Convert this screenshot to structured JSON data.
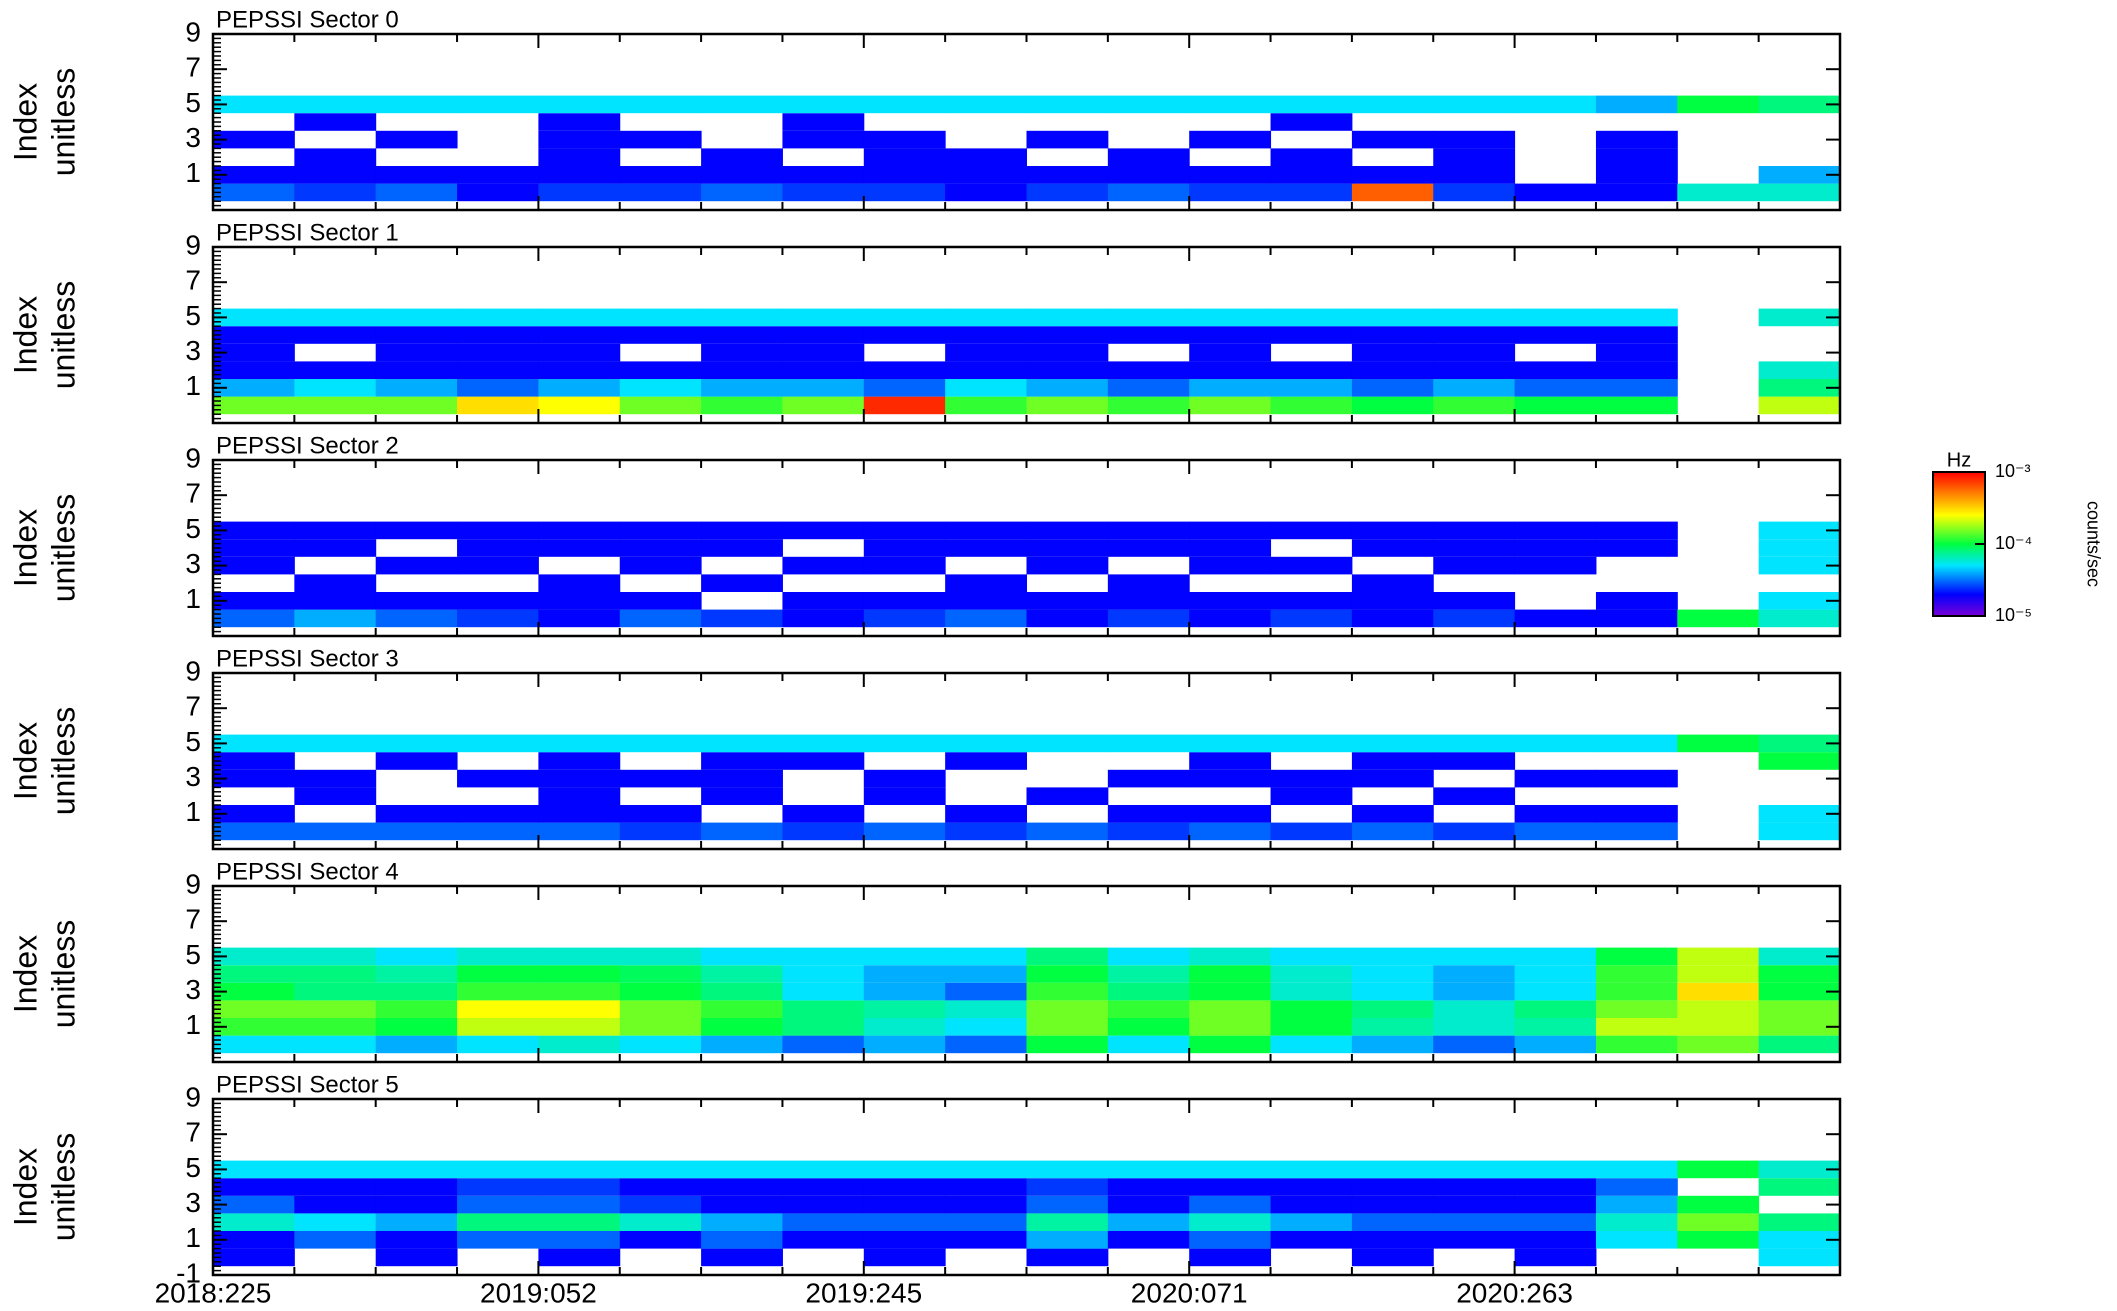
{
  "chart_data": {
    "type": "heatmap",
    "ylabel": "Index",
    "yunit": "unitless",
    "x": [
      "2018:225",
      null,
      null,
      null,
      "2019:052",
      null,
      null,
      null,
      "2019:245",
      null,
      null,
      null,
      "2020:071",
      null,
      null,
      null,
      "2020:263",
      null,
      null,
      null
    ],
    "ylim": [
      -1,
      9
    ],
    "yticks": [
      -1,
      1,
      3,
      5,
      7,
      9
    ],
    "rows": [
      0,
      1,
      2,
      3,
      4,
      5
    ],
    "colormap": "rainbow",
    "log_color": true,
    "colorbar": {
      "title": "Hz",
      "label": "counts/sec",
      "lim": [
        1e-05,
        0.001
      ],
      "ticks": [
        {
          "value": 1e-05,
          "label": "10⁻⁵"
        },
        {
          "value": 0.0001,
          "label": "10⁻⁴"
        },
        {
          "value": 0.001,
          "label": "10⁻³"
        }
      ]
    },
    "panels": [
      {
        "title": "PEPSSI Sector 0",
        "values": [
          [
            3e-05,
            2.5e-05,
            3e-05,
            2e-05,
            2.5e-05,
            2.5e-05,
            3e-05,
            2.5e-05,
            2.5e-05,
            2e-05,
            2.5e-05,
            3e-05,
            2.5e-05,
            2.5e-05,
            0.0006,
            2.5e-05,
            2e-05,
            2e-05,
            6e-05,
            6e-05
          ],
          [
            2e-05,
            2e-05,
            2e-05,
            2e-05,
            2e-05,
            2e-05,
            2e-05,
            2e-05,
            2e-05,
            2e-05,
            2e-05,
            2e-05,
            2e-05,
            2e-05,
            2e-05,
            2e-05,
            null,
            2e-05,
            null,
            4e-05
          ],
          [
            null,
            2e-05,
            null,
            null,
            2e-05,
            null,
            2e-05,
            null,
            2e-05,
            2e-05,
            null,
            2e-05,
            null,
            2e-05,
            null,
            2e-05,
            null,
            2e-05,
            null,
            null
          ],
          [
            2e-05,
            null,
            2e-05,
            null,
            2e-05,
            2e-05,
            null,
            2e-05,
            2e-05,
            null,
            2e-05,
            null,
            2e-05,
            null,
            2e-05,
            2e-05,
            null,
            2e-05,
            null,
            null
          ],
          [
            null,
            2e-05,
            null,
            null,
            2e-05,
            null,
            null,
            2e-05,
            null,
            null,
            null,
            null,
            null,
            2e-05,
            null,
            null,
            null,
            null,
            null,
            null
          ],
          [
            5e-05,
            5e-05,
            5e-05,
            5e-05,
            5e-05,
            5e-05,
            5e-05,
            5e-05,
            5e-05,
            5e-05,
            5e-05,
            5e-05,
            5e-05,
            5e-05,
            5e-05,
            5e-05,
            5e-05,
            4e-05,
            0.0001,
            8e-05
          ]
        ]
      },
      {
        "title": "PEPSSI Sector 1",
        "values": [
          [
            0.00015,
            0.00015,
            0.00015,
            0.0003,
            0.00025,
            0.00015,
            0.00012,
            0.00015,
            0.0008,
            0.00012,
            0.00015,
            0.00012,
            0.00015,
            0.00012,
            0.0001,
            0.00012,
            0.0001,
            0.0001,
            null,
            0.0002
          ],
          [
            4e-05,
            5e-05,
            4e-05,
            3e-05,
            4e-05,
            5e-05,
            4e-05,
            4e-05,
            3e-05,
            5e-05,
            4e-05,
            3e-05,
            4e-05,
            4e-05,
            3e-05,
            4e-05,
            3e-05,
            3e-05,
            null,
            8e-05
          ],
          [
            2e-05,
            2e-05,
            2e-05,
            2e-05,
            2e-05,
            2e-05,
            2e-05,
            2e-05,
            2e-05,
            2e-05,
            2e-05,
            2e-05,
            2e-05,
            2e-05,
            2e-05,
            2e-05,
            2e-05,
            2e-05,
            null,
            6e-05
          ],
          [
            2e-05,
            null,
            2e-05,
            2e-05,
            2e-05,
            null,
            2e-05,
            2e-05,
            null,
            2e-05,
            2e-05,
            null,
            2e-05,
            null,
            2e-05,
            2e-05,
            null,
            2e-05,
            null,
            null
          ],
          [
            2e-05,
            2e-05,
            2e-05,
            2e-05,
            2e-05,
            2e-05,
            2e-05,
            2e-05,
            2e-05,
            2e-05,
            2e-05,
            2e-05,
            2e-05,
            2e-05,
            2e-05,
            2e-05,
            2e-05,
            2e-05,
            null,
            null
          ],
          [
            5e-05,
            5e-05,
            5e-05,
            5e-05,
            5e-05,
            5e-05,
            5e-05,
            5e-05,
            5e-05,
            5e-05,
            5e-05,
            5e-05,
            5e-05,
            5e-05,
            5e-05,
            5e-05,
            5e-05,
            5e-05,
            null,
            6e-05
          ]
        ]
      },
      {
        "title": "PEPSSI Sector 2",
        "values": [
          [
            3e-05,
            4e-05,
            3e-05,
            2.5e-05,
            2e-05,
            3e-05,
            2.5e-05,
            2e-05,
            2.5e-05,
            3e-05,
            2e-05,
            2.5e-05,
            2e-05,
            2.5e-05,
            2e-05,
            2.5e-05,
            2e-05,
            2e-05,
            0.0001,
            6e-05
          ],
          [
            2e-05,
            2e-05,
            2e-05,
            2e-05,
            2e-05,
            2e-05,
            null,
            2e-05,
            2e-05,
            2e-05,
            2e-05,
            2e-05,
            2e-05,
            2e-05,
            2e-05,
            2e-05,
            null,
            2e-05,
            null,
            5e-05
          ],
          [
            null,
            2e-05,
            null,
            null,
            2e-05,
            null,
            2e-05,
            null,
            null,
            2e-05,
            null,
            2e-05,
            null,
            null,
            2e-05,
            null,
            null,
            null,
            null,
            null
          ],
          [
            2e-05,
            null,
            2e-05,
            2e-05,
            null,
            2e-05,
            null,
            2e-05,
            2e-05,
            null,
            2e-05,
            null,
            2e-05,
            2e-05,
            null,
            2e-05,
            2e-05,
            null,
            null,
            5e-05
          ],
          [
            2e-05,
            2e-05,
            null,
            2e-05,
            2e-05,
            2e-05,
            2e-05,
            null,
            2e-05,
            2e-05,
            2e-05,
            2e-05,
            2e-05,
            null,
            2e-05,
            2e-05,
            2e-05,
            2e-05,
            null,
            5e-05
          ],
          [
            2e-05,
            2e-05,
            2e-05,
            2e-05,
            2e-05,
            2e-05,
            2e-05,
            2e-05,
            2e-05,
            2e-05,
            2e-05,
            2e-05,
            2e-05,
            2e-05,
            2e-05,
            2e-05,
            2e-05,
            2e-05,
            null,
            5e-05
          ]
        ]
      },
      {
        "title": "PEPSSI Sector 3",
        "values": [
          [
            3e-05,
            3e-05,
            3e-05,
            3e-05,
            3e-05,
            2.5e-05,
            3e-05,
            2.5e-05,
            3e-05,
            2.5e-05,
            3e-05,
            2.5e-05,
            3e-05,
            2.5e-05,
            3e-05,
            2.5e-05,
            3e-05,
            3e-05,
            null,
            5e-05
          ],
          [
            2e-05,
            null,
            2e-05,
            2e-05,
            2e-05,
            2e-05,
            null,
            2e-05,
            null,
            2e-05,
            null,
            2e-05,
            2e-05,
            null,
            2e-05,
            null,
            2e-05,
            2e-05,
            null,
            5e-05
          ],
          [
            null,
            2e-05,
            null,
            null,
            2e-05,
            null,
            2e-05,
            null,
            2e-05,
            null,
            2e-05,
            null,
            null,
            2e-05,
            null,
            2e-05,
            null,
            null,
            null,
            null
          ],
          [
            2e-05,
            2e-05,
            null,
            2e-05,
            2e-05,
            2e-05,
            2e-05,
            null,
            2e-05,
            null,
            null,
            2e-05,
            2e-05,
            2e-05,
            2e-05,
            null,
            2e-05,
            2e-05,
            null,
            null
          ],
          [
            2e-05,
            null,
            2e-05,
            null,
            2e-05,
            null,
            2e-05,
            2e-05,
            null,
            2e-05,
            null,
            null,
            2e-05,
            null,
            2e-05,
            2e-05,
            null,
            null,
            null,
            0.0001
          ],
          [
            5e-05,
            5e-05,
            5e-05,
            5e-05,
            5e-05,
            5e-05,
            5e-05,
            5e-05,
            5e-05,
            5e-05,
            5e-05,
            5e-05,
            5e-05,
            5e-05,
            5e-05,
            5e-05,
            5e-05,
            5e-05,
            0.0001,
            8e-05
          ]
        ]
      },
      {
        "title": "PEPSSI Sector 4",
        "values": [
          [
            5e-05,
            5e-05,
            4e-05,
            5e-05,
            6e-05,
            5e-05,
            4e-05,
            3e-05,
            4e-05,
            3e-05,
            0.0001,
            5e-05,
            0.0001,
            5e-05,
            4e-05,
            3e-05,
            4e-05,
            0.00012,
            0.00015,
            8e-05
          ],
          [
            0.00012,
            0.00012,
            0.0001,
            0.0002,
            0.0002,
            0.00015,
            0.0001,
            8e-05,
            6e-05,
            5e-05,
            0.00015,
            0.0001,
            0.00015,
            0.0001,
            7e-05,
            6e-05,
            7e-05,
            0.0002,
            0.0002,
            0.00015
          ],
          [
            0.00015,
            0.00015,
            0.00012,
            0.00025,
            0.00025,
            0.00015,
            0.00012,
            8e-05,
            7e-05,
            6e-05,
            0.00015,
            0.00012,
            0.00015,
            0.0001,
            8e-05,
            6e-05,
            8e-05,
            0.00015,
            0.0002,
            0.00015
          ],
          [
            0.0001,
            8e-05,
            8e-05,
            0.00012,
            0.00012,
            0.0001,
            8e-05,
            5e-05,
            4e-05,
            3e-05,
            0.00012,
            8e-05,
            0.0001,
            6e-05,
            5e-05,
            4e-05,
            5e-05,
            0.00012,
            0.0003,
            0.0001
          ],
          [
            8e-05,
            8e-05,
            7e-05,
            0.0001,
            0.0001,
            9e-05,
            7e-05,
            5e-05,
            4e-05,
            4e-05,
            0.0001,
            7e-05,
            0.0001,
            6e-05,
            5e-05,
            4e-05,
            5e-05,
            0.00012,
            0.0002,
            0.0001
          ],
          [
            6e-05,
            6e-05,
            5e-05,
            6e-05,
            6e-05,
            6e-05,
            5e-05,
            5e-05,
            5e-05,
            5e-05,
            8e-05,
            5e-05,
            6e-05,
            5e-05,
            5e-05,
            5e-05,
            5e-05,
            0.0001,
            0.0002,
            6e-05
          ]
        ]
      },
      {
        "title": "PEPSSI Sector 5",
        "values": [
          [
            2e-05,
            null,
            2e-05,
            null,
            2e-05,
            null,
            2e-05,
            null,
            2e-05,
            null,
            2e-05,
            null,
            2e-05,
            null,
            2e-05,
            null,
            2e-05,
            null,
            null,
            5e-05
          ],
          [
            2e-05,
            3e-05,
            2e-05,
            3e-05,
            3e-05,
            2e-05,
            3e-05,
            2e-05,
            2e-05,
            2e-05,
            4e-05,
            2e-05,
            3e-05,
            2e-05,
            2e-05,
            2e-05,
            2e-05,
            5e-05,
            0.0001,
            5e-05
          ],
          [
            6e-05,
            5e-05,
            4e-05,
            8e-05,
            8e-05,
            6e-05,
            4e-05,
            3e-05,
            3e-05,
            3e-05,
            7e-05,
            4e-05,
            6e-05,
            4e-05,
            3e-05,
            3e-05,
            3e-05,
            6e-05,
            0.00015,
            8e-05
          ],
          [
            3e-05,
            2e-05,
            2e-05,
            3e-05,
            3e-05,
            2.5e-05,
            2e-05,
            2e-05,
            2e-05,
            2e-05,
            3e-05,
            2e-05,
            3e-05,
            2e-05,
            2e-05,
            2e-05,
            2e-05,
            4e-05,
            0.0001,
            null
          ],
          [
            2e-05,
            2e-05,
            2e-05,
            2.5e-05,
            2.5e-05,
            2e-05,
            2e-05,
            2e-05,
            2e-05,
            2e-05,
            2.5e-05,
            2e-05,
            2e-05,
            2e-05,
            2e-05,
            2e-05,
            2e-05,
            3e-05,
            null,
            8e-05
          ],
          [
            5e-05,
            5e-05,
            5e-05,
            5e-05,
            5e-05,
            5e-05,
            5e-05,
            5e-05,
            5e-05,
            5e-05,
            5e-05,
            5e-05,
            5e-05,
            5e-05,
            5e-05,
            5e-05,
            5e-05,
            5e-05,
            0.0001,
            6e-05
          ]
        ]
      }
    ]
  }
}
